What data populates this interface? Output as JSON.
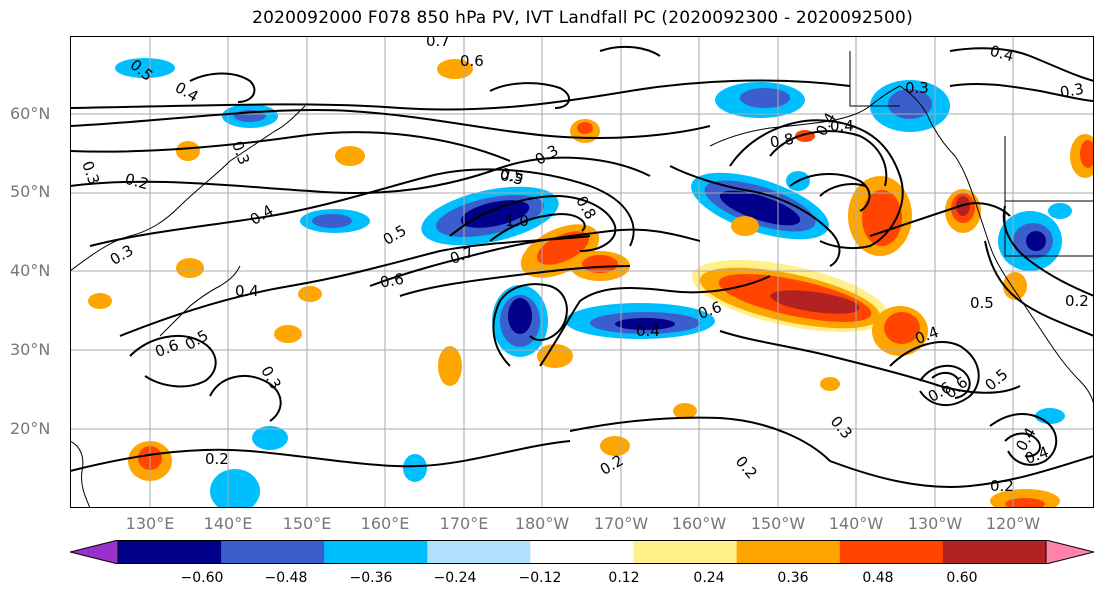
{
  "title": "2020092000 F078 850 hPa PV, IVT Landfall PC (2020092300 - 2020092500)",
  "map": {
    "lat_labels": [
      "60°N",
      "50°N",
      "40°N",
      "30°N",
      "20°N"
    ],
    "lon_labels": [
      "130°E",
      "140°E",
      "150°E",
      "160°E",
      "170°E",
      "180°W",
      "170°W",
      "160°W",
      "150°W",
      "140°W",
      "130°W",
      "120°W"
    ],
    "contour_labels": [
      "0.7",
      "0.6",
      "0.5",
      "0.4",
      "0.3",
      "0.2",
      "0.3",
      "0.4",
      "0.3",
      "0.5",
      "1.0",
      "0.8",
      "0.5",
      "0.6",
      "0.7",
      "0.4",
      "0.6",
      "0.5",
      "0.6",
      "0.4",
      "0.8",
      "0.4",
      "0.3",
      "0.5",
      "0.4",
      "0.3",
      "0.6",
      "0.5",
      "0.6",
      "0.5",
      "0.4",
      "0.3",
      "0.2",
      "0.2",
      "0.2",
      "0.3",
      "0.2",
      "0.4",
      "0.4",
      "0.4",
      "0.3",
      "0.2"
    ]
  },
  "colorbar": {
    "ticks": [
      "−0.60",
      "−0.48",
      "−0.36",
      "−0.24",
      "−0.12",
      "0.12",
      "0.24",
      "0.36",
      "0.48",
      "0.60"
    ],
    "colors": [
      "#9932cc",
      "#00008b",
      "#3a5fcd",
      "#00bfff",
      "#b0e2ff",
      "#ffffff",
      "#fff08a",
      "#ffa500",
      "#ff4500",
      "#b22222",
      "#ff82ab"
    ]
  }
}
